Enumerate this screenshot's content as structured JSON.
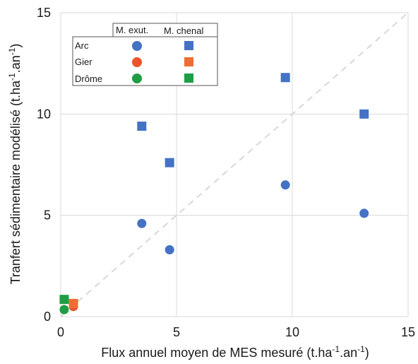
{
  "chart_data": {
    "type": "scatter",
    "xlabel": {
      "pre": "Flux annuel moyen de MES mesuré (t.ha",
      "sup1": "-1",
      "mid": ".an",
      "sup2": "-1",
      "post": ")"
    },
    "ylabel": {
      "pre": "Tranfert sédimentaire modélisé (t.ha",
      "sup1": "-1",
      "mid": ".an",
      "sup2": "-1",
      "post": ")"
    },
    "xlim": [
      0,
      15
    ],
    "ylim": [
      0,
      15
    ],
    "xticks": [
      0,
      5,
      10,
      15
    ],
    "yticks": [
      0,
      5,
      10,
      15
    ],
    "grid": true,
    "reference_line": {
      "style": "dashed",
      "color": "#d0d0d0",
      "from": [
        0,
        0
      ],
      "to": [
        15,
        15
      ]
    },
    "legend": {
      "placement": "top-left",
      "column_headers": [
        "M. exut.",
        "M. chenal"
      ],
      "rows": [
        "Arc",
        "Gier",
        "Drôme"
      ]
    },
    "series": [
      {
        "river": "Arc",
        "model": "M. exut.",
        "marker": "circle",
        "color": "#4472c4",
        "points": [
          [
            3.5,
            4.6
          ],
          [
            4.7,
            3.3
          ],
          [
            9.7,
            6.5
          ],
          [
            13.1,
            5.1
          ]
        ]
      },
      {
        "river": "Arc",
        "model": "M. chenal",
        "marker": "square",
        "color": "#4472c4",
        "points": [
          [
            3.5,
            9.4
          ],
          [
            4.7,
            7.6
          ],
          [
            9.7,
            11.8
          ],
          [
            13.1,
            10.0
          ]
        ]
      },
      {
        "river": "Gier",
        "model": "M. exut.",
        "marker": "circle",
        "color": "#e8552a",
        "points": [
          [
            0.55,
            0.5
          ]
        ]
      },
      {
        "river": "Gier",
        "model": "M. chenal",
        "marker": "square",
        "color": "#ed6d35",
        "points": [
          [
            0.55,
            0.65
          ]
        ]
      },
      {
        "river": "Drôme",
        "model": "M. exut.",
        "marker": "circle",
        "color": "#1e9e44",
        "points": [
          [
            0.15,
            0.35
          ]
        ]
      },
      {
        "river": "Drôme",
        "model": "M. chenal",
        "marker": "square",
        "color": "#1e9e44",
        "points": [
          [
            0.15,
            0.85
          ]
        ]
      }
    ]
  }
}
